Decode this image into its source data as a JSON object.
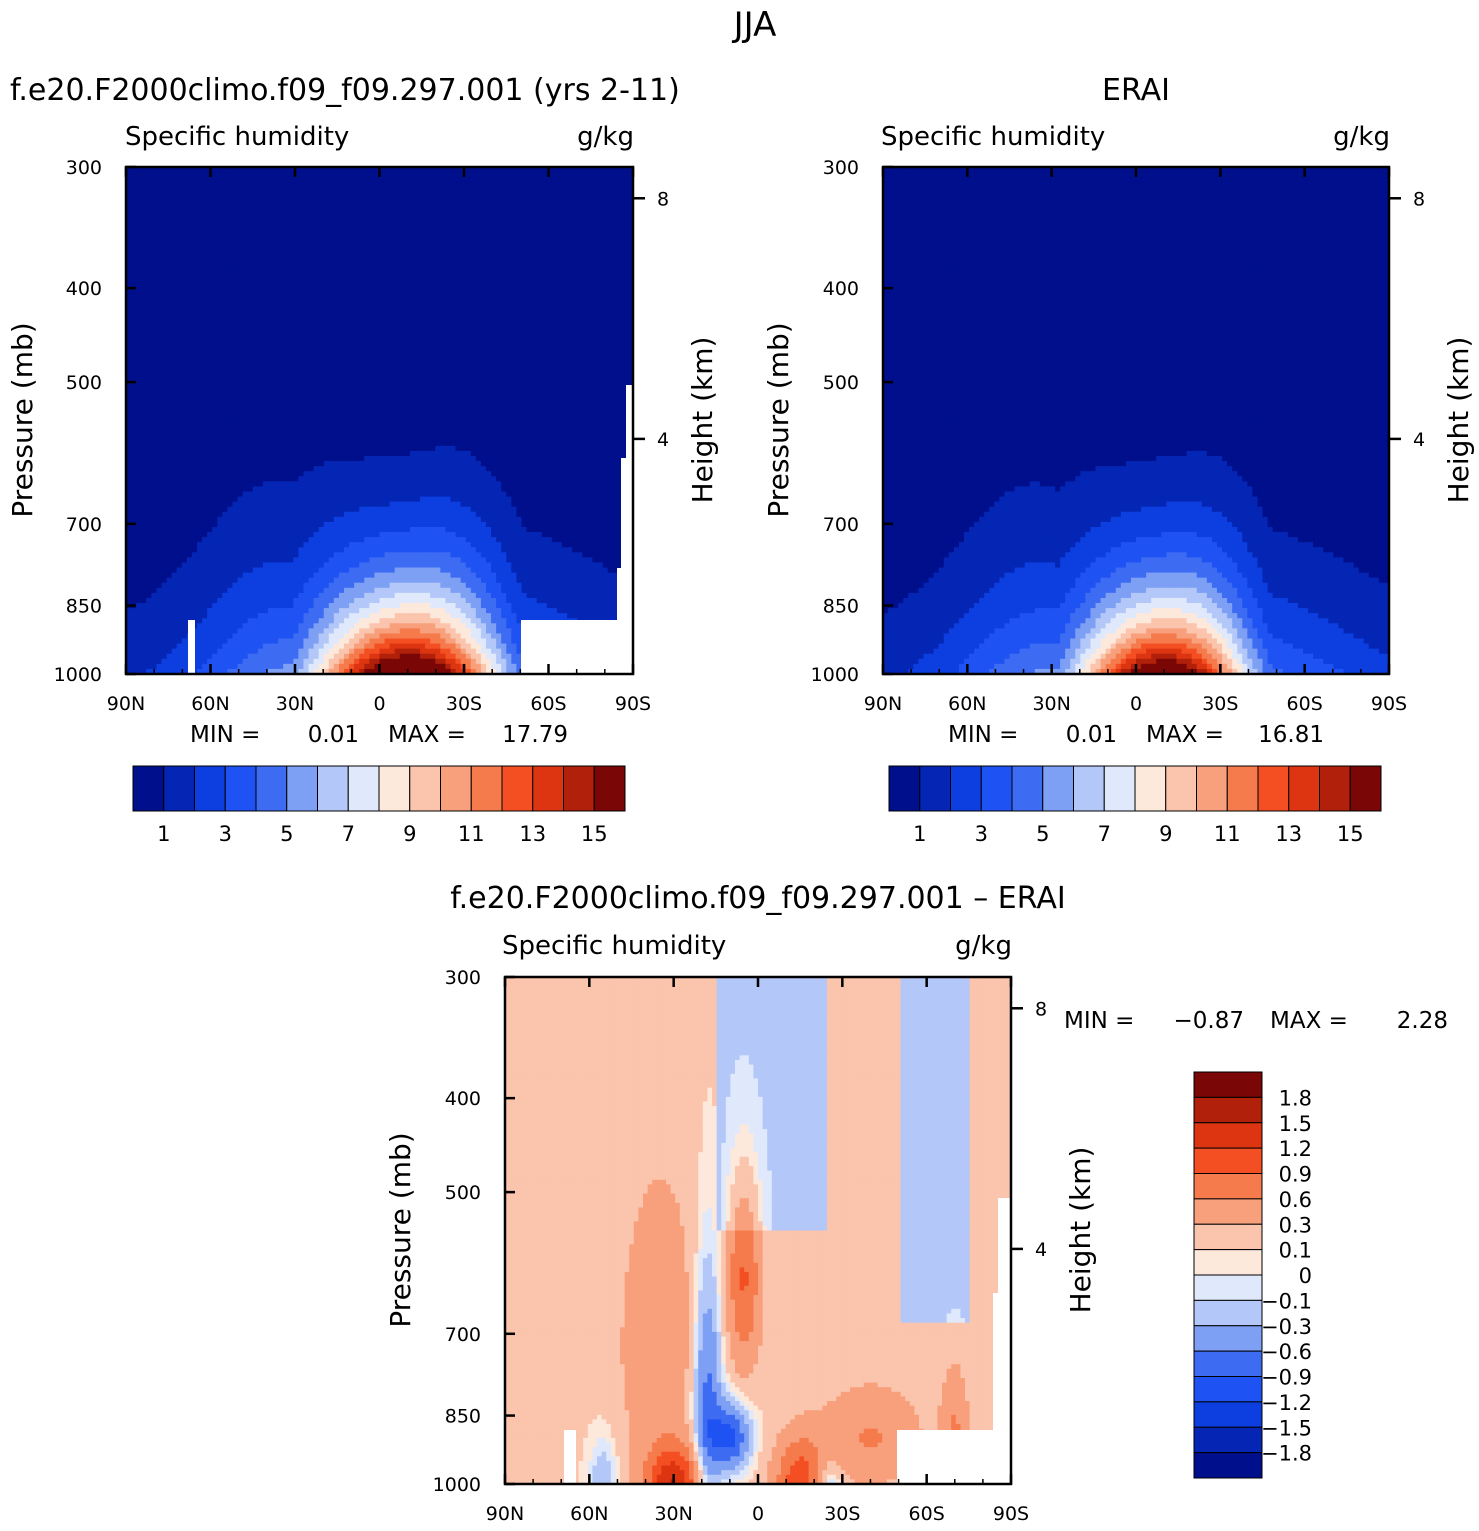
{
  "page_title": "JJA",
  "colors": {
    "abs": [
      "#000f8c",
      "#0526b4",
      "#0c3ee0",
      "#1f52f3",
      "#3d6cf3",
      "#7ea0f4",
      "#b3c8f8",
      "#dfe9fb",
      "#fde8dc",
      "#fbc4ac",
      "#f8a07c",
      "#f57a4c",
      "#f44f22",
      "#dd3511",
      "#b0200b",
      "#7a0606"
    ],
    "diff": [
      "#000f8c",
      "#0526b4",
      "#0c3ee0",
      "#1f52f3",
      "#3d6cf3",
      "#7ea0f4",
      "#b3c8f8",
      "#dfe9fb",
      "#fde8dc",
      "#fbc4ac",
      "#f8a07c",
      "#f57a4c",
      "#f44f22",
      "#dd3511",
      "#b0200b",
      "#7a0606"
    ]
  },
  "chart_data": [
    {
      "type": "heatmap",
      "title": "f.e20.F2000climo.f09_f09.297.001 (yrs 2-11)",
      "subtitle_left": "Specific humidity",
      "subtitle_right": "g/kg",
      "ylabel": "Pressure (mb)",
      "ylabel_right": "Height (km)",
      "x_ticks": [
        "90N",
        "60N",
        "30N",
        "0",
        "30S",
        "60S",
        "90S"
      ],
      "y_ticks": [
        "300",
        "400",
        "500",
        "700",
        "850",
        "1000"
      ],
      "y_right_ticks": [
        "8",
        "4"
      ],
      "min_label": "MIN =",
      "min_value": "0.01",
      "max_label": "MAX =",
      "max_value": "17.79",
      "colorbar_labels": [
        "1",
        "3",
        "5",
        "7",
        "9",
        "11",
        "13",
        "15"
      ],
      "levels": [
        1,
        2,
        3,
        4,
        5,
        6,
        7,
        8,
        9,
        10,
        11,
        12,
        13,
        14,
        15
      ],
      "peak_lat": -10,
      "peak_value": 17.79
    },
    {
      "type": "heatmap",
      "title": "ERAI",
      "subtitle_left": "Specific humidity",
      "subtitle_right": "g/kg",
      "ylabel": "Pressure (mb)",
      "ylabel_right": "Height (km)",
      "x_ticks": [
        "90N",
        "60N",
        "30N",
        "0",
        "30S",
        "60S",
        "90S"
      ],
      "y_ticks": [
        "300",
        "400",
        "500",
        "700",
        "850",
        "1000"
      ],
      "y_right_ticks": [
        "8",
        "4"
      ],
      "min_label": "MIN =",
      "min_value": "0.01",
      "max_label": "MAX =",
      "max_value": "16.81",
      "colorbar_labels": [
        "1",
        "3",
        "5",
        "7",
        "9",
        "11",
        "13",
        "15"
      ],
      "levels": [
        1,
        2,
        3,
        4,
        5,
        6,
        7,
        8,
        9,
        10,
        11,
        12,
        13,
        14,
        15
      ],
      "peak_lat": -10,
      "peak_value": 16.81
    },
    {
      "type": "heatmap",
      "title": "f.e20.F2000climo.f09_f09.297.001 – ERAI",
      "subtitle_left": "Specific humidity",
      "subtitle_right": "g/kg",
      "ylabel": "Pressure (mb)",
      "ylabel_right": "Height (km)",
      "x_ticks": [
        "90N",
        "60N",
        "30N",
        "0",
        "30S",
        "60S",
        "90S"
      ],
      "y_ticks": [
        "300",
        "400",
        "500",
        "700",
        "850",
        "1000"
      ],
      "y_right_ticks": [
        "8",
        "4"
      ],
      "min_label": "MIN =",
      "min_value": "−0.87",
      "max_label": "MAX =",
      "max_value": "2.28",
      "colorbar_labels": [
        "1.8",
        "1.5",
        "1.2",
        "0.9",
        "0.6",
        "0.3",
        "0.1",
        "0",
        "−0.1",
        "−0.3",
        "−0.6",
        "−0.9",
        "−1.2",
        "−1.5",
        "−1.8"
      ],
      "levels": [
        -1.8,
        -1.5,
        -1.2,
        -0.9,
        -0.6,
        -0.3,
        -0.1,
        0,
        0.1,
        0.3,
        0.6,
        0.9,
        1.2,
        1.5,
        1.8
      ]
    }
  ]
}
